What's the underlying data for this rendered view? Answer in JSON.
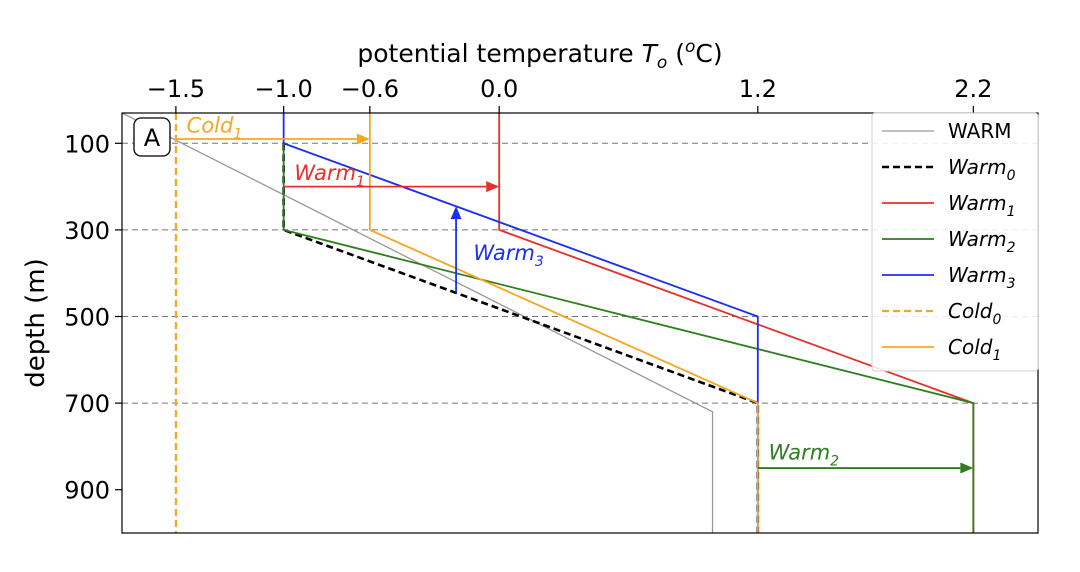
{
  "chart_data": {
    "type": "line",
    "panel_label": "A",
    "xlabel": {
      "prefix": "potential temperature ",
      "symbol": "T",
      "symbol_sub": "o",
      "unit_open": " (",
      "unit_sup": "o",
      "unit_close": "C)"
    },
    "ylabel": "depth (m)",
    "xlim": [
      -1.75,
      2.5
    ],
    "ylim": [
      1000,
      30
    ],
    "x_axis_position": "top",
    "y_inverted": true,
    "xticks": [
      {
        "value": -1.5,
        "label": "−1.5"
      },
      {
        "value": -1.0,
        "label": "−1.0"
      },
      {
        "value": -0.6,
        "label": "−0.6"
      },
      {
        "value": 0.0,
        "label": "0.0"
      },
      {
        "value": 1.2,
        "label": "1.2"
      },
      {
        "value": 2.2,
        "label": "2.2"
      }
    ],
    "yticks": [
      {
        "value": 100,
        "label": "100"
      },
      {
        "value": 300,
        "label": "300"
      },
      {
        "value": 500,
        "label": "500"
      },
      {
        "value": 700,
        "label": "700"
      },
      {
        "value": 900,
        "label": "900"
      }
    ],
    "hgrid": [
      100,
      300,
      500,
      700
    ],
    "grid_style": "dashed-horizontal",
    "legend_position": "top-right",
    "series": [
      {
        "name": "WARM",
        "label_base": "WARM",
        "label_sub": "",
        "italic": false,
        "color": "#999999",
        "dash": "solid",
        "width": 1.3,
        "x": [
          -1.75,
          0.99,
          0.99
        ],
        "y": [
          30,
          720,
          1000
        ]
      },
      {
        "name": "Warm0",
        "label_base": "Warm",
        "label_sub": "0",
        "italic": true,
        "color": "#000000",
        "dash": "dashed",
        "width": 2.6,
        "x": [
          -1.0,
          -1.0,
          1.2,
          1.2
        ],
        "y": [
          100,
          300,
          700,
          1000
        ]
      },
      {
        "name": "Warm1",
        "label_base": "Warm",
        "label_sub": "1",
        "italic": true,
        "color": "#e8302a",
        "dash": "solid",
        "width": 1.8,
        "x": [
          0.0,
          0.0,
          2.2,
          2.2
        ],
        "y": [
          30,
          300,
          700,
          1000
        ]
      },
      {
        "name": "Warm2",
        "label_base": "Warm",
        "label_sub": "2",
        "italic": true,
        "color": "#2e7d1f",
        "dash": "solid",
        "width": 1.8,
        "x": [
          -1.0,
          -1.0,
          2.2,
          2.2
        ],
        "y": [
          100,
          300,
          700,
          1000
        ]
      },
      {
        "name": "Warm3",
        "label_base": "Warm",
        "label_sub": "3",
        "italic": true,
        "color": "#1a2ff0",
        "dash": "solid",
        "width": 1.8,
        "x": [
          -1.0,
          -1.0,
          1.2,
          1.2,
          1.2
        ],
        "y": [
          30,
          100,
          500,
          700,
          1000
        ]
      },
      {
        "name": "Cold0",
        "label_base": "Cold",
        "label_sub": "0",
        "italic": true,
        "color": "#f5a623",
        "dash": "dashed",
        "width": 2.2,
        "x": [
          -1.5,
          -1.5
        ],
        "y": [
          30,
          1000
        ]
      },
      {
        "name": "Cold1",
        "label_base": "Cold",
        "label_sub": "1",
        "italic": true,
        "color": "#f5a623",
        "dash": "solid",
        "width": 1.8,
        "x": [
          -0.6,
          -0.6,
          1.2,
          1.2
        ],
        "y": [
          30,
          300,
          700,
          1000
        ]
      }
    ],
    "annotations": [
      {
        "label_base": "Cold",
        "label_sub": "1",
        "color": "#f5a623",
        "arrow": {
          "from": [
            -1.5,
            90
          ],
          "to": [
            -0.6,
            90
          ]
        },
        "text_at": [
          -1.45,
          75
        ],
        "text_anchor": "start"
      },
      {
        "label_base": "Warm",
        "label_sub": "1",
        "color": "#e8302a",
        "arrow": {
          "from": [
            -1.0,
            200
          ],
          "to": [
            0.0,
            200
          ]
        },
        "text_at": [
          -0.95,
          185
        ],
        "text_anchor": "start"
      },
      {
        "label_base": "Warm",
        "label_sub": "3",
        "color": "#1a2ff0",
        "arrow": {
          "from": [
            -0.2,
            445
          ],
          "to": [
            -0.2,
            245
          ]
        },
        "text_at": [
          -0.12,
          370
        ],
        "text_anchor": "start"
      },
      {
        "label_base": "Warm",
        "label_sub": "2",
        "color": "#2e7d1f",
        "arrow": {
          "from": [
            1.2,
            850
          ],
          "to": [
            2.2,
            850
          ]
        },
        "text_at": [
          1.25,
          830
        ],
        "text_anchor": "start"
      }
    ]
  }
}
